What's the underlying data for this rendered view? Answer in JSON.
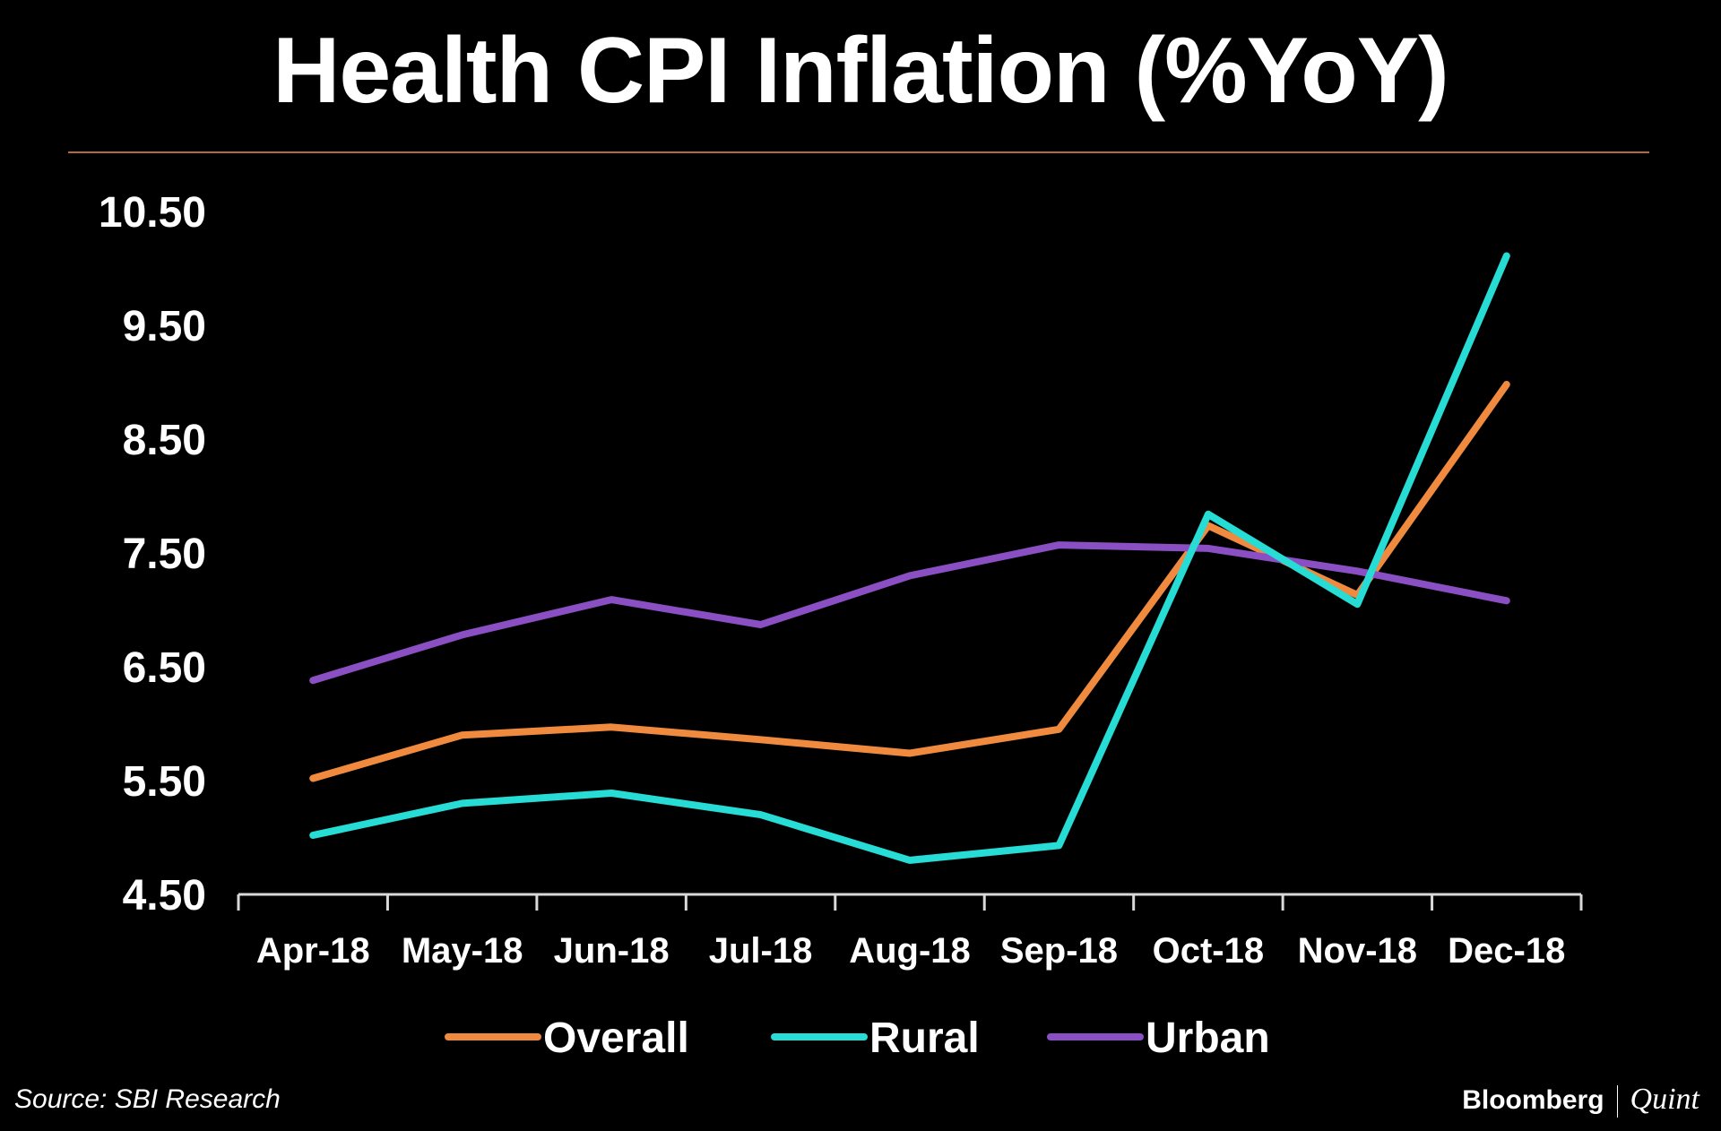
{
  "title": "Health CPI Inflation (%YoY)",
  "source": "Source:  SBI Research",
  "brand": {
    "primary": "Bloomberg",
    "secondary": "Quint"
  },
  "colors": {
    "background": "#000000",
    "rule": "#b5693a",
    "Overall": "#f08a3e",
    "Rural": "#27dcd5",
    "Urban": "#8a4fc2"
  },
  "chart_data": {
    "type": "line",
    "categories": [
      "Apr-18",
      "May-18",
      "Jun-18",
      "Jul-18",
      "Aug-18",
      "Sep-18",
      "Oct-18",
      "Nov-18",
      "Dec-18"
    ],
    "y_ticks": [
      "10.50",
      "9.50",
      "8.50",
      "7.50",
      "6.50",
      "5.50",
      "4.50"
    ],
    "ylim": [
      4.5,
      10.5
    ],
    "grid": false,
    "legend_position": "bottom",
    "series": [
      {
        "name": "Overall",
        "values": [
          5.52,
          5.9,
          5.97,
          5.86,
          5.74,
          5.95,
          7.74,
          7.13,
          8.98
        ]
      },
      {
        "name": "Rural",
        "values": [
          5.02,
          5.3,
          5.39,
          5.2,
          4.8,
          4.93,
          7.84,
          7.05,
          10.11
        ]
      },
      {
        "name": "Urban",
        "values": [
          6.38,
          6.78,
          7.09,
          6.87,
          7.3,
          7.57,
          7.54,
          7.34,
          7.08
        ]
      }
    ]
  }
}
